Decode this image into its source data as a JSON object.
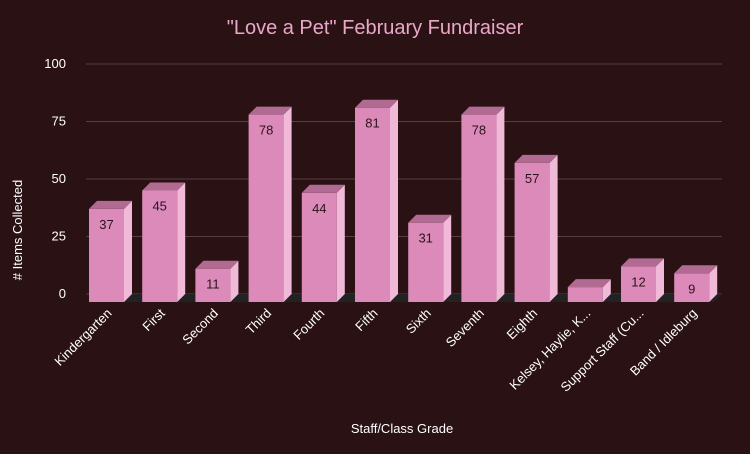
{
  "chart_data": {
    "type": "bar",
    "title": "\"Love a Pet\" February Fundraiser",
    "xlabel": "Staff/Class Grade",
    "ylabel": "# Items Collected",
    "ylim": [
      0,
      100
    ],
    "yticks": [
      0,
      25,
      50,
      75,
      100
    ],
    "grid": true,
    "categories": [
      "Kindergarten",
      "First",
      "Second",
      "Third",
      "Fourth",
      "Fifth",
      "Sixth",
      "Seventh",
      "Eighth",
      "Kelsey, Haylie, K...",
      "Support Staff (Cu...",
      "Band / Idleburg"
    ],
    "values": [
      37,
      45,
      11,
      78,
      44,
      81,
      31,
      78,
      57,
      3,
      12,
      9
    ],
    "colors": {
      "background": "#2a1114",
      "bar_front": "#dc8ab9",
      "bar_side": "#f1b9d8",
      "bar_top": "#b16a92",
      "floor": "#222222",
      "gridline": "#5b3c40",
      "title": "#e9a8c8",
      "outside_label": "#dc8ab9"
    }
  }
}
